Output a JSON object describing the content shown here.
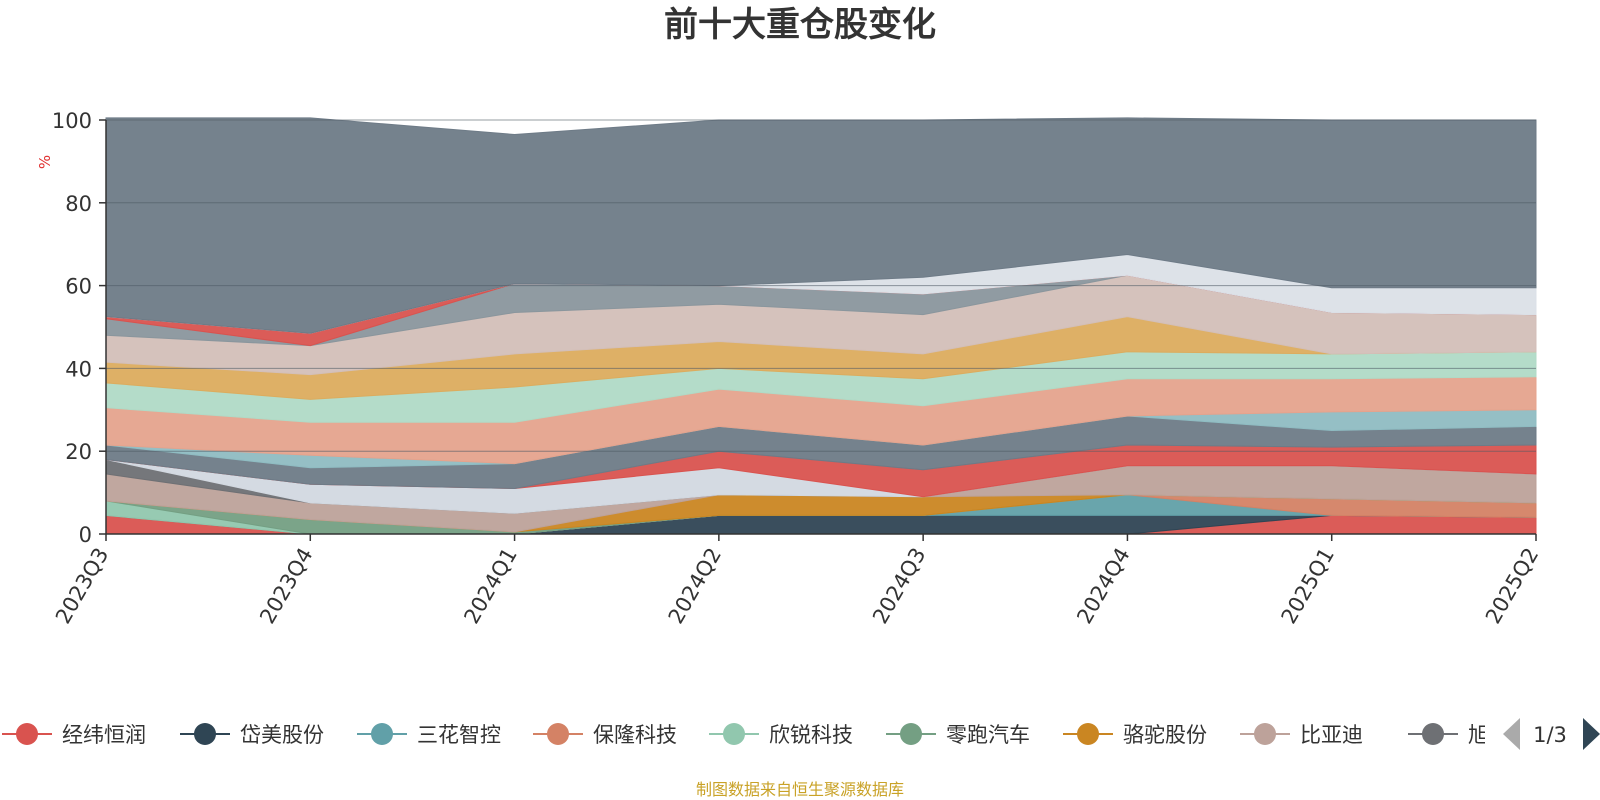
{
  "colors": {
    "background_area": "#6e7b87",
    "source_text": "#c9a227",
    "unit_text": "#e03030"
  },
  "legend": {
    "page_label": "1/3",
    "prev_icon": "triangle-left-icon",
    "next_icon": "triangle-right-icon"
  },
  "source_note": "制图数据来自恒生聚源数据库",
  "chart_data": {
    "type": "area",
    "stacked": true,
    "title": "前十大重仓股变化",
    "ylabel": "%",
    "ylim": [
      0,
      100
    ],
    "yticks": [
      0,
      20,
      40,
      60,
      80,
      100
    ],
    "grid": true,
    "legend_position": "bottom",
    "categories": [
      "2023Q3",
      "2023Q4",
      "2024Q1",
      "2024Q2",
      "2024Q3",
      "2024Q4",
      "2025Q1",
      "2025Q2"
    ],
    "series": [
      {
        "name": "经纬恒润",
        "color": "#d9534f",
        "legend": true,
        "values": [
          4.5,
          0,
          0,
          0,
          0,
          0,
          4.5,
          4
        ]
      },
      {
        "name": "岱美股份",
        "color": "#2f4554",
        "legend": true,
        "values": [
          0,
          0,
          0,
          4.5,
          4.5,
          4.5,
          0,
          0
        ]
      },
      {
        "name": "三花智控",
        "color": "#61a0a8",
        "legend": true,
        "values": [
          0,
          0,
          0,
          0,
          0,
          5,
          0,
          0
        ]
      },
      {
        "name": "保隆科技",
        "color": "#d48265",
        "legend": true,
        "values": [
          0,
          0,
          0,
          0,
          0,
          0,
          4,
          3.5
        ]
      },
      {
        "name": "欣锐科技",
        "color": "#91c7ae",
        "legend": true,
        "values": [
          3.5,
          0,
          0,
          0,
          0,
          0,
          0,
          0
        ]
      },
      {
        "name": "零跑汽车",
        "color": "#749f83",
        "legend": true,
        "values": [
          0,
          3.5,
          0.5,
          0,
          0,
          0,
          0,
          0
        ]
      },
      {
        "name": "骆驼股份",
        "color": "#ca8622",
        "legend": true,
        "values": [
          0,
          0,
          0,
          5,
          4.5,
          0,
          0,
          0
        ]
      },
      {
        "name": "比亚迪",
        "color": "#bda29a",
        "legend": true,
        "values": [
          6.5,
          4,
          4.5,
          0,
          0,
          7,
          8,
          7
        ]
      },
      {
        "name": "旭升集团",
        "color": "#6e7074",
        "legend": true,
        "values": [
          3.5,
          0,
          0,
          0,
          0,
          0,
          0,
          0
        ]
      },
      {
        "name": "",
        "color": "#d2d8e0",
        "legend": false,
        "values": [
          0,
          4.5,
          6,
          6.5,
          0,
          0,
          0,
          0
        ]
      },
      {
        "name": "",
        "color": "#d9534f",
        "legend": false,
        "values": [
          0,
          0,
          0,
          4,
          6.5,
          5,
          4.5,
          7
        ]
      },
      {
        "name": "",
        "color": "#6e7b87",
        "legend": false,
        "values": [
          3.5,
          4,
          6,
          6,
          6,
          7,
          4,
          4.5
        ]
      },
      {
        "name": "",
        "color": "#8fbcc2",
        "legend": false,
        "values": [
          0,
          3,
          0,
          0,
          0,
          0,
          4.5,
          4
        ]
      },
      {
        "name": "",
        "color": "#e5a38d",
        "legend": false,
        "values": [
          9,
          8,
          10,
          9,
          9.5,
          9,
          8,
          8
        ]
      },
      {
        "name": "",
        "color": "#b0dac6",
        "legend": false,
        "values": [
          6,
          5.5,
          8.5,
          5,
          6.5,
          6.5,
          6,
          6
        ]
      },
      {
        "name": "",
        "color": "#dcac5e",
        "legend": false,
        "values": [
          5,
          6,
          8,
          6.5,
          6,
          8.5,
          0,
          0
        ]
      },
      {
        "name": "",
        "color": "#d3bfb8",
        "legend": false,
        "values": [
          6.5,
          7,
          10,
          9,
          9.5,
          10,
          10,
          9
        ]
      },
      {
        "name": "",
        "color": "#8a969d",
        "legend": false,
        "values": [
          4,
          0,
          7,
          4.5,
          5,
          0,
          0,
          0
        ]
      },
      {
        "name": "",
        "color": "#d9534f",
        "legend": false,
        "values": [
          0.5,
          3,
          0,
          0,
          0,
          0,
          0,
          0
        ]
      },
      {
        "name": "",
        "color": "#dbe0e7",
        "legend": false,
        "values": [
          0,
          0,
          0,
          0,
          4,
          5,
          6,
          6.5
        ]
      },
      {
        "name": "",
        "color": "#6e7b87",
        "legend": false,
        "values": [
          48,
          52,
          36,
          40,
          38,
          33,
          40.5,
          40.5
        ]
      }
    ]
  }
}
